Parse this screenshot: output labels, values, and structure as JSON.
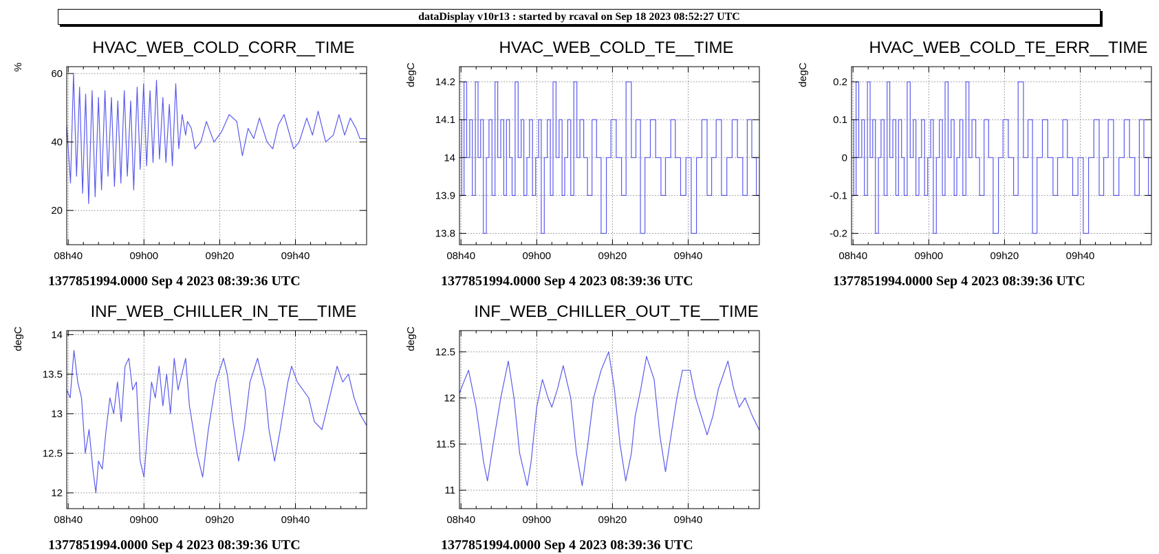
{
  "header": {
    "text": "dataDisplay v10r13 : started by rcaval on Sep 18 2023 08:52:27 UTC"
  },
  "colors": {
    "line": "#5a5aee",
    "grid": "#a0a0a0",
    "frame": "#000000"
  },
  "chart_data": [
    {
      "type": "line",
      "title": "HVAC_WEB_COLD_CORR__TIME",
      "ylabel": "%",
      "xlabel": "",
      "caption": "1377851994.0000 Sep 4 2023 08:39:36 UTC",
      "grid": true,
      "xlim": [
        39.6,
        118.8
      ],
      "xticks": [
        {
          "v": 40,
          "label": "08h40"
        },
        {
          "v": 60,
          "label": "09h00"
        },
        {
          "v": 80,
          "label": "09h20"
        },
        {
          "v": 100,
          "label": "09h40"
        }
      ],
      "ylim": [
        10,
        62
      ],
      "yticks": [
        {
          "v": 20,
          "label": "20"
        },
        {
          "v": 40,
          "label": "40"
        },
        {
          "v": 60,
          "label": "60"
        }
      ],
      "series": [
        {
          "x": [
            39.6,
            40.6,
            41.4,
            42.2,
            43.0,
            43.8,
            44.6,
            45.4,
            46.3,
            47.1,
            48.0,
            48.8,
            49.7,
            50.5,
            51.4,
            52.2,
            53.1,
            53.9,
            54.8,
            55.6,
            56.5,
            57.3,
            58.2,
            59.0,
            59.9,
            60.7,
            61.6,
            62.4,
            63.3,
            64.1,
            65.0,
            65.8,
            66.7,
            67.5,
            68.4,
            69.2,
            70.1,
            71.0,
            71.5,
            72.5,
            73.5,
            75.0,
            76.5,
            78.5,
            80.5,
            82.5,
            84.5,
            86.0,
            87.5,
            89.0,
            90.5,
            92.5,
            94.0,
            95.5,
            97.0,
            98.0,
            99.5,
            101.0,
            103.0,
            104.5,
            106.0,
            108.0,
            110.0,
            111.5,
            113.0,
            114.5,
            116.0,
            117.0,
            118.8
          ],
          "y": [
            45,
            28,
            60,
            30,
            56,
            25,
            54,
            22,
            55,
            24,
            53,
            26,
            55,
            30,
            53,
            27,
            52,
            28,
            55,
            30,
            52,
            26,
            56,
            32,
            57,
            33,
            55,
            34,
            58,
            35,
            53,
            34,
            51,
            33,
            57,
            38,
            48,
            42,
            46,
            44,
            38,
            40,
            46,
            40,
            43,
            48,
            46,
            36,
            44,
            41,
            47,
            40,
            38,
            45,
            48,
            44,
            38,
            40,
            47,
            42,
            49,
            40,
            42,
            48,
            42,
            47,
            44,
            41,
            41
          ]
        }
      ]
    },
    {
      "type": "line",
      "title": "HVAC_WEB_COLD_TE__TIME",
      "ylabel": "degC",
      "xlabel": "",
      "caption": "1377851994.0000 Sep 4 2023 08:39:36 UTC",
      "grid": true,
      "xlim": [
        39.6,
        118.8
      ],
      "xticks": [
        {
          "v": 40,
          "label": "08h40"
        },
        {
          "v": 60,
          "label": "09h00"
        },
        {
          "v": 80,
          "label": "09h20"
        },
        {
          "v": 100,
          "label": "09h40"
        }
      ],
      "ylim": [
        13.77,
        14.24
      ],
      "yticks": [
        {
          "v": 13.8,
          "label": "13.8"
        },
        {
          "v": 13.9,
          "label": "13.9"
        },
        {
          "v": 14.0,
          "label": "14"
        },
        {
          "v": 14.1,
          "label": "14.1"
        },
        {
          "v": 14.2,
          "label": "14.2"
        }
      ],
      "series": [
        {
          "step": true,
          "x": [
            39.6,
            40.2,
            40.8,
            41.5,
            42.3,
            43.0,
            43.8,
            44.5,
            45.2,
            45.9,
            46.7,
            47.4,
            48.2,
            49.0,
            49.7,
            50.5,
            51.3,
            52.0,
            52.8,
            53.5,
            54.3,
            55.1,
            55.9,
            56.6,
            57.4,
            58.1,
            58.9,
            59.7,
            60.5,
            61.2,
            62.0,
            62.8,
            63.6,
            64.3,
            65.1,
            65.9,
            66.7,
            67.4,
            68.2,
            69.0,
            69.8,
            70.6,
            71.4,
            72.4,
            73.4,
            74.6,
            75.8,
            77.0,
            78.4,
            79.6,
            81.0,
            82.4,
            83.6,
            85.0,
            86.2,
            87.4,
            88.6,
            90.0,
            91.4,
            92.8,
            94.0,
            95.4,
            96.6,
            98.0,
            99.4,
            100.8,
            102.2,
            103.6,
            105.0,
            106.2,
            107.4,
            108.8,
            110.2,
            111.6,
            113.0,
            114.4,
            115.6,
            116.8,
            118.0
          ],
          "y": [
            14.1,
            13.9,
            14.2,
            14.0,
            14.1,
            13.9,
            14.2,
            14.0,
            14.1,
            13.8,
            14.0,
            14.1,
            13.9,
            14.2,
            14.0,
            14.1,
            13.9,
            14.1,
            14.0,
            13.9,
            14.2,
            14.0,
            14.1,
            13.9,
            14.0,
            14.1,
            13.9,
            14.0,
            14.1,
            13.8,
            14.0,
            14.1,
            13.9,
            14.2,
            14.0,
            14.1,
            13.9,
            14.0,
            14.1,
            13.9,
            14.2,
            14.0,
            14.1,
            14.0,
            13.9,
            14.1,
            14.0,
            13.8,
            14.0,
            14.1,
            14.0,
            13.9,
            14.2,
            14.0,
            14.1,
            13.8,
            14.0,
            14.1,
            14.0,
            13.9,
            14.0,
            14.1,
            14.0,
            13.9,
            14.0,
            13.8,
            14.0,
            14.1,
            13.9,
            14.0,
            14.1,
            13.9,
            14.0,
            14.1,
            14.0,
            13.9,
            14.1,
            14.0,
            13.9
          ]
        }
      ]
    },
    {
      "type": "line",
      "title": "HVAC_WEB_COLD_TE_ERR__TIME",
      "ylabel": "degC",
      "xlabel": "",
      "caption": "1377851994.0000 Sep 4 2023 08:39:36 UTC",
      "grid": true,
      "xlim": [
        39.6,
        118.8
      ],
      "xticks": [
        {
          "v": 40,
          "label": "08h40"
        },
        {
          "v": 60,
          "label": "09h00"
        },
        {
          "v": 80,
          "label": "09h20"
        },
        {
          "v": 100,
          "label": "09h40"
        }
      ],
      "ylim": [
        -0.23,
        0.24
      ],
      "yticks": [
        {
          "v": -0.2,
          "label": "-0.2"
        },
        {
          "v": -0.1,
          "label": "-0.1"
        },
        {
          "v": 0.0,
          "label": "0"
        },
        {
          "v": 0.1,
          "label": "0.1"
        },
        {
          "v": 0.2,
          "label": "0.2"
        }
      ],
      "series": [
        {
          "step": true,
          "x": [
            39.6,
            40.2,
            40.8,
            41.5,
            42.3,
            43.0,
            43.8,
            44.5,
            45.2,
            45.9,
            46.7,
            47.4,
            48.2,
            49.0,
            49.7,
            50.5,
            51.3,
            52.0,
            52.8,
            53.5,
            54.3,
            55.1,
            55.9,
            56.6,
            57.4,
            58.1,
            58.9,
            59.7,
            60.5,
            61.2,
            62.0,
            62.8,
            63.6,
            64.3,
            65.1,
            65.9,
            66.7,
            67.4,
            68.2,
            69.0,
            69.8,
            70.6,
            71.4,
            72.4,
            73.4,
            74.6,
            75.8,
            77.0,
            78.4,
            79.6,
            81.0,
            82.4,
            83.6,
            85.0,
            86.2,
            87.4,
            88.6,
            90.0,
            91.4,
            92.8,
            94.0,
            95.4,
            96.6,
            98.0,
            99.4,
            100.8,
            102.2,
            103.6,
            105.0,
            106.2,
            107.4,
            108.8,
            110.2,
            111.6,
            113.0,
            114.4,
            115.6,
            116.8,
            118.0
          ],
          "y": [
            0.1,
            -0.1,
            0.2,
            0.0,
            0.1,
            -0.1,
            0.2,
            0.0,
            0.1,
            -0.2,
            0.0,
            0.1,
            -0.1,
            0.2,
            0.0,
            0.1,
            -0.1,
            0.1,
            0.0,
            -0.1,
            0.2,
            0.0,
            0.1,
            -0.1,
            0.0,
            0.1,
            -0.1,
            0.0,
            0.1,
            -0.2,
            0.0,
            0.1,
            -0.1,
            0.2,
            0.0,
            0.1,
            -0.1,
            0.0,
            0.1,
            -0.1,
            0.2,
            0.0,
            0.1,
            0.0,
            -0.1,
            0.1,
            0.0,
            -0.2,
            0.0,
            0.1,
            0.0,
            -0.1,
            0.2,
            0.0,
            0.1,
            -0.2,
            0.0,
            0.1,
            0.0,
            -0.1,
            0.0,
            0.1,
            0.0,
            -0.1,
            0.0,
            -0.2,
            0.0,
            0.1,
            -0.1,
            0.0,
            0.1,
            -0.1,
            0.0,
            0.1,
            0.0,
            -0.1,
            0.1,
            0.0,
            -0.1
          ]
        }
      ]
    },
    {
      "type": "line",
      "title": "INF_WEB_CHILLER_IN_TE__TIME",
      "ylabel": "degC",
      "xlabel": "",
      "caption": "1377851994.0000 Sep 4 2023 08:39:36 UTC",
      "grid": true,
      "xlim": [
        39.6,
        118.8
      ],
      "xticks": [
        {
          "v": 40,
          "label": "08h40"
        },
        {
          "v": 60,
          "label": "09h00"
        },
        {
          "v": 80,
          "label": "09h20"
        },
        {
          "v": 100,
          "label": "09h40"
        }
      ],
      "ylim": [
        11.8,
        14.05
      ],
      "yticks": [
        {
          "v": 12.0,
          "label": "12"
        },
        {
          "v": 12.5,
          "label": "12.5"
        },
        {
          "v": 13.0,
          "label": "13"
        },
        {
          "v": 13.5,
          "label": "13.5"
        },
        {
          "v": 14.0,
          "label": "14"
        }
      ],
      "series": [
        {
          "x": [
            39.6,
            40.5,
            41.5,
            42.5,
            43.5,
            44.5,
            45.5,
            46.5,
            47.3,
            48.0,
            49.0,
            50.0,
            51.0,
            52.0,
            53.0,
            54.0,
            55.0,
            56.0,
            57.0,
            58.0,
            59.0,
            60.0,
            61.0,
            62.0,
            63.0,
            64.0,
            65.0,
            66.0,
            67.0,
            68.0,
            69.0,
            70.0,
            71.0,
            72.0,
            73.0,
            74.0,
            75.5,
            77.0,
            79.0,
            81.0,
            82.0,
            83.5,
            85.0,
            86.5,
            88.0,
            90.0,
            92.0,
            93.0,
            94.5,
            96.0,
            98.0,
            99.0,
            100.5,
            102.0,
            103.5,
            105.0,
            107.0,
            109.0,
            111.0,
            112.5,
            114.0,
            115.5,
            117.0,
            118.8
          ],
          "y": [
            13.3,
            13.2,
            13.8,
            13.4,
            13.2,
            12.5,
            12.8,
            12.3,
            12.0,
            12.4,
            12.3,
            12.8,
            13.2,
            13.0,
            13.4,
            12.9,
            13.6,
            13.7,
            13.3,
            13.4,
            12.4,
            12.2,
            12.8,
            13.4,
            13.2,
            13.6,
            13.1,
            13.5,
            13.0,
            13.7,
            13.3,
            13.5,
            13.7,
            13.1,
            12.8,
            12.5,
            12.2,
            12.8,
            13.4,
            13.7,
            13.5,
            12.9,
            12.4,
            12.8,
            13.4,
            13.7,
            13.3,
            12.8,
            12.4,
            12.8,
            13.4,
            13.6,
            13.4,
            13.3,
            13.2,
            12.9,
            12.8,
            13.2,
            13.6,
            13.4,
            13.5,
            13.2,
            13.0,
            12.85
          ]
        }
      ]
    },
    {
      "type": "line",
      "title": "INF_WEB_CHILLER_OUT_TE__TIME",
      "ylabel": "degC",
      "xlabel": "",
      "caption": "1377851994.0000 Sep 4 2023 08:39:36 UTC",
      "grid": true,
      "xlim": [
        39.6,
        118.8
      ],
      "xticks": [
        {
          "v": 40,
          "label": "08h40"
        },
        {
          "v": 60,
          "label": "09h00"
        },
        {
          "v": 80,
          "label": "09h20"
        },
        {
          "v": 100,
          "label": "09h40"
        }
      ],
      "ylim": [
        10.8,
        12.73
      ],
      "yticks": [
        {
          "v": 11.0,
          "label": "11"
        },
        {
          "v": 11.5,
          "label": "11.5"
        },
        {
          "v": 12.0,
          "label": "12"
        },
        {
          "v": 12.5,
          "label": "12.5"
        }
      ],
      "series": [
        {
          "x": [
            39.6,
            40.5,
            42.0,
            44.0,
            46.0,
            47.0,
            48.5,
            50.5,
            52.5,
            54.0,
            55.5,
            57.5,
            58.5,
            60.0,
            61.5,
            63.0,
            64.0,
            65.5,
            67.0,
            69.0,
            70.5,
            72.0,
            73.5,
            75.0,
            77.0,
            79.0,
            80.5,
            82.0,
            83.5,
            85.0,
            86.0,
            87.5,
            89.0,
            91.0,
            92.5,
            94.0,
            95.5,
            97.0,
            98.5,
            100.5,
            102.0,
            103.5,
            105.0,
            106.5,
            108.0,
            110.5,
            112.0,
            113.5,
            115.0,
            117.0,
            118.8
          ],
          "y": [
            12.05,
            12.15,
            12.3,
            11.9,
            11.3,
            11.1,
            11.5,
            12.0,
            12.4,
            12.0,
            11.4,
            11.05,
            11.3,
            11.9,
            12.2,
            12.0,
            11.9,
            12.1,
            12.35,
            12.0,
            11.4,
            11.05,
            11.5,
            12.0,
            12.3,
            12.5,
            12.1,
            11.5,
            11.1,
            11.4,
            11.8,
            12.1,
            12.45,
            12.2,
            11.6,
            11.2,
            11.6,
            12.0,
            12.3,
            12.3,
            12.0,
            11.8,
            11.6,
            11.8,
            12.1,
            12.4,
            12.1,
            11.9,
            12.0,
            11.8,
            11.65
          ]
        }
      ]
    }
  ]
}
